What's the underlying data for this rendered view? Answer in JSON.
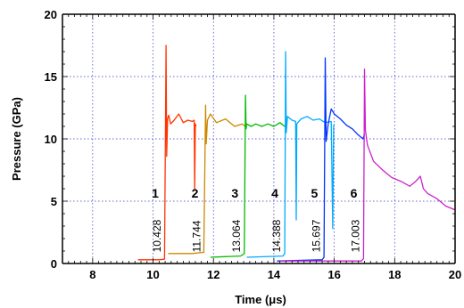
{
  "chart_data": {
    "type": "line",
    "xlabel": "Time (μs)",
    "ylabel": "Pressure (GPa)",
    "xlim": [
      7,
      20
    ],
    "ylim": [
      0,
      20
    ],
    "xticks": [
      8,
      10,
      12,
      14,
      16,
      18,
      20
    ],
    "yticks": [
      0,
      5,
      10,
      15,
      20
    ],
    "grid": true,
    "series": [
      {
        "name": "1",
        "time_label": "10.428",
        "color": "#ff3300",
        "x": [
          9.5,
          10.2,
          10.38,
          10.43,
          10.45,
          10.48,
          10.52,
          10.58,
          10.7,
          10.85,
          11.0,
          11.15,
          11.3,
          11.36,
          11.38,
          11.4,
          11.42
        ],
        "y": [
          0.3,
          0.3,
          0.35,
          17.5,
          8.6,
          11.6,
          11.9,
          11.2,
          11.5,
          12.0,
          11.3,
          11.5,
          11.4,
          11.5,
          5.9,
          11.2,
          11.0
        ]
      },
      {
        "name": "2",
        "time_label": "11.744",
        "color": "#cc8800",
        "x": [
          10.5,
          11.3,
          11.68,
          11.74,
          11.76,
          11.8,
          11.9,
          12.1,
          12.4,
          12.7,
          12.95,
          13.05
        ],
        "y": [
          0.8,
          0.8,
          0.9,
          12.7,
          9.6,
          11.5,
          12.0,
          11.3,
          11.6,
          11.0,
          11.2,
          11.0
        ]
      },
      {
        "name": "3",
        "time_label": "13.064",
        "color": "#00bb00",
        "x": [
          11.9,
          12.9,
          13.02,
          13.06,
          13.08,
          13.1,
          13.25,
          13.4,
          13.6,
          13.8,
          14.0,
          14.2,
          14.36,
          14.4
        ],
        "y": [
          0.5,
          0.6,
          0.8,
          13.5,
          10.8,
          11.2,
          11.0,
          11.2,
          11.0,
          11.2,
          11.0,
          11.3,
          11.0,
          11.2
        ]
      },
      {
        "name": "4",
        "time_label": "14.388",
        "color": "#00aaff",
        "x": [
          13.1,
          14.3,
          14.36,
          14.39,
          14.41,
          14.45,
          14.6,
          14.72,
          14.74,
          14.76,
          14.9,
          15.1,
          15.3,
          15.5,
          15.7,
          15.9,
          15.95,
          15.98,
          16.0
        ],
        "y": [
          0.5,
          0.6,
          0.8,
          17.0,
          10.5,
          11.8,
          11.5,
          11.4,
          3.5,
          11.2,
          11.6,
          11.8,
          11.5,
          11.6,
          11.3,
          11.4,
          2.8,
          11.0,
          11.2
        ]
      },
      {
        "name": "5",
        "time_label": "15.697",
        "color": "#0033ff",
        "x": [
          14.1,
          15.6,
          15.66,
          15.7,
          15.73,
          15.8,
          15.9,
          16.0,
          16.2,
          16.4,
          16.6,
          16.8,
          16.95,
          17.0
        ],
        "y": [
          0.2,
          0.3,
          0.5,
          16.5,
          9.8,
          11.2,
          12.4,
          12.0,
          11.6,
          11.1,
          10.8,
          10.3,
          10.0,
          10.4
        ]
      },
      {
        "name": "6",
        "time_label": "17.003",
        "color": "#cc22cc",
        "x": [
          14.2,
          16.9,
          16.97,
          17.0,
          17.03,
          17.1,
          17.3,
          17.6,
          17.9,
          18.2,
          18.5,
          18.7,
          18.85,
          18.95,
          19.1,
          19.4,
          19.7,
          20.0
        ],
        "y": [
          0.2,
          0.2,
          0.4,
          15.6,
          10.7,
          9.5,
          8.2,
          7.5,
          6.9,
          6.6,
          6.2,
          6.6,
          7.0,
          6.0,
          5.6,
          5.2,
          4.6,
          4.3
        ]
      }
    ]
  }
}
